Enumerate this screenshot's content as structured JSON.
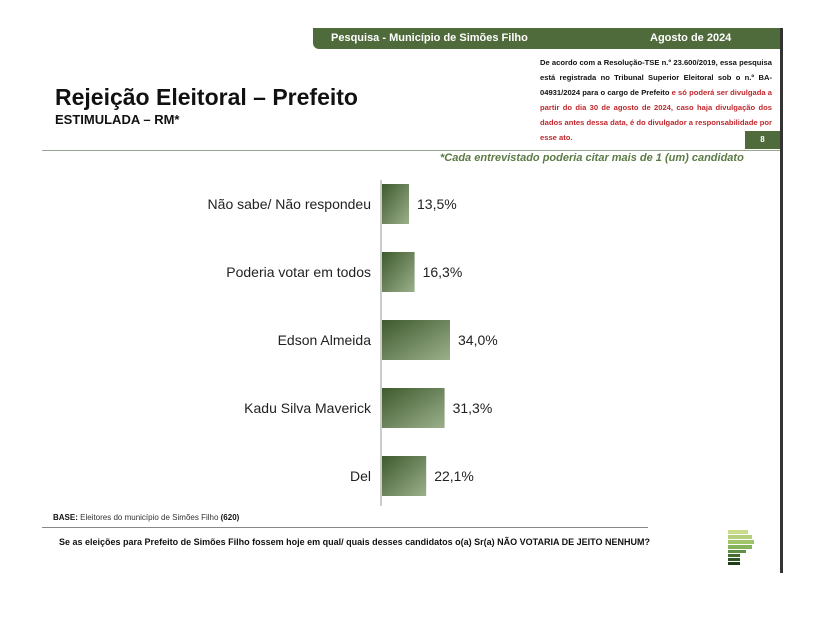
{
  "header": {
    "survey": "Pesquisa - Município de Simões Filho",
    "date": "Agosto de 2024"
  },
  "title": "Rejeição Eleitoral – Prefeito",
  "subtitle": "ESTIMULADA – RM*",
  "notice": {
    "black": "De acordo com a Resolução-TSE n.º 23.600/2019, essa pesquisa está registrada no Tribunal Superior Eleitoral sob o n.º BA-04931/2024 para o cargo de Prefeito ",
    "red": "e só poderá ser divulgada a partir do dia 30 de agosto de 2024, caso haja divulgação dos dados antes dessa data, é do divulgador a responsabilidade por esse ato."
  },
  "page_number": "8",
  "footnote": "*Cada entrevistado poderia citar mais de 1 (um) candidato",
  "base": {
    "label": "BASE:",
    "text": " Eleitores do município de Simões Filho ",
    "count": "(620)"
  },
  "question": "Se as eleições para Prefeito de Simões Filho fossem hoje em qual/ quais desses candidatos o(a) Sr(a) NÃO VOTARIA DE JEITO NENHUM?",
  "colors": {
    "brand": "#4f6b3c",
    "bar_dark": "#3f5a2e",
    "bar_light": "#9bb08a",
    "notice_red": "#c0282d"
  },
  "chart_data": {
    "type": "bar",
    "orientation": "horizontal",
    "categories": [
      "Não sabe/ Não respondeu",
      "Poderia votar em todos",
      "Edson Almeida",
      "Kadu Silva Maverick",
      "Del"
    ],
    "values": [
      13.5,
      16.3,
      34.0,
      31.3,
      22.1
    ],
    "labels": [
      "13,5%",
      "16,3%",
      "34,0%",
      "31,3%",
      "22,1%"
    ],
    "unit": "%",
    "xlim": [
      0,
      100
    ],
    "grid": false
  }
}
